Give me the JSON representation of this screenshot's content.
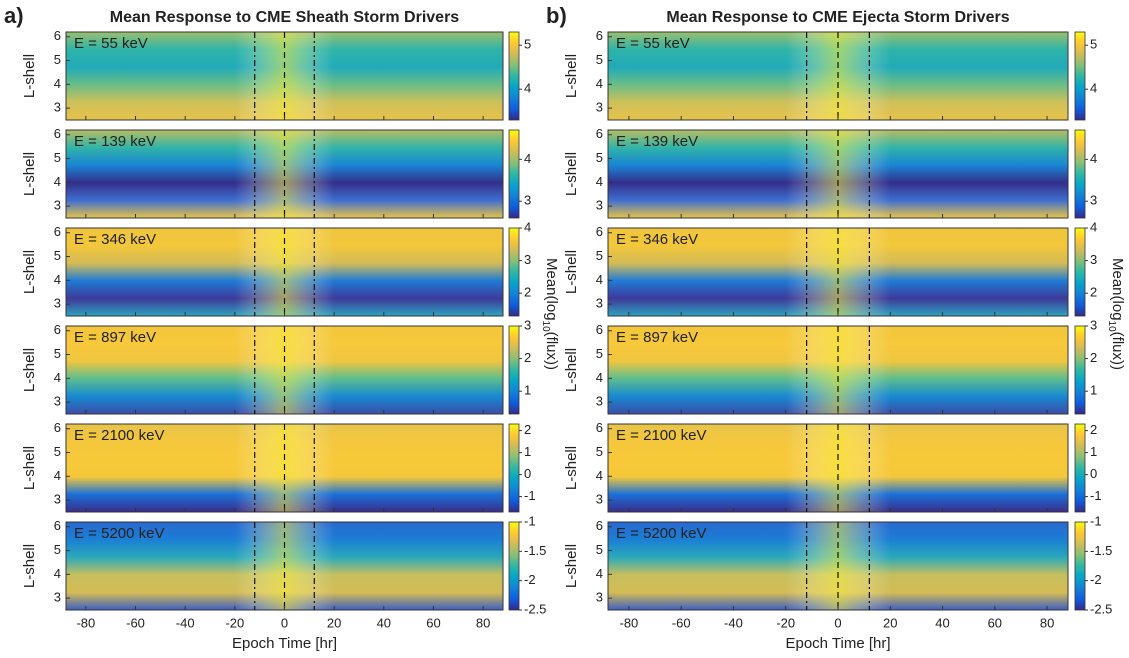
{
  "chart_data": {
    "type": "heatmap-grid",
    "xlabel": "Epoch Time [hr]",
    "ylabel": "L-shell",
    "colorbar_label": [
      "Mean(log",
      "10",
      "(flux))"
    ],
    "xlim": [
      -88,
      88
    ],
    "xticks": [
      -80,
      -60,
      -40,
      -20,
      0,
      20,
      40,
      60,
      80
    ],
    "ylim": [
      2.5,
      6.2
    ],
    "yticks": [
      3,
      4,
      5,
      6
    ],
    "vlines": [
      -12,
      0,
      12
    ],
    "panels": [
      {
        "label": "a)",
        "title": "Mean Response to CME Sheath Storm Drivers"
      },
      {
        "label": "b)",
        "title": "Mean Response to CME Ejecta Storm Drivers"
      }
    ],
    "rows": [
      {
        "energy": "E = 55 keV",
        "clim": [
          3.3,
          5.3
        ],
        "cticks": [
          4,
          5
        ]
      },
      {
        "energy": "E = 139 keV",
        "clim": [
          2.6,
          4.7
        ],
        "cticks": [
          3,
          4
        ]
      },
      {
        "energy": "E = 346 keV",
        "clim": [
          1.3,
          4
        ],
        "cticks": [
          2,
          3,
          4
        ]
      },
      {
        "energy": "E = 897 keV",
        "clim": [
          0.3,
          3
        ],
        "cticks": [
          1,
          2,
          3
        ]
      },
      {
        "energy": "E = 2100 keV",
        "clim": [
          -1.7,
          2.3
        ],
        "cticks": [
          -1,
          0,
          1,
          2
        ]
      },
      {
        "energy": "E = 5200 keV",
        "clim": [
          -2.5,
          -1
        ],
        "cticks": [
          -2.5,
          -2,
          -1.5,
          -1
        ]
      }
    ]
  }
}
